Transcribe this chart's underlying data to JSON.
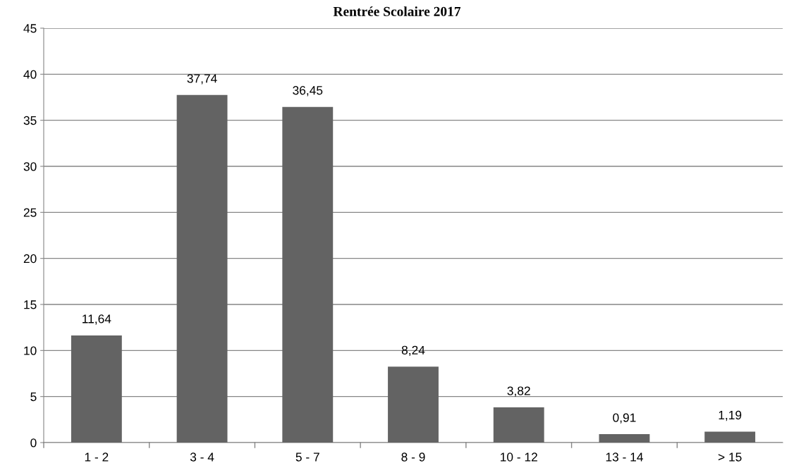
{
  "chart_data": {
    "type": "bar",
    "title": "Rentrée Scolaire 2017",
    "categories": [
      "1 - 2",
      "3 - 4",
      "5 - 7",
      "8 - 9",
      "10 - 12",
      "13 - 14",
      "> 15"
    ],
    "values": [
      11.64,
      37.74,
      36.45,
      8.24,
      3.82,
      0.91,
      1.19
    ],
    "value_labels": [
      "11,64",
      "37,74",
      "36,45",
      "8,24",
      "3,82",
      "0,91",
      "1,19"
    ],
    "color": "#636363",
    "ylim": [
      0,
      45
    ],
    "yticks": [
      0,
      5,
      10,
      15,
      20,
      25,
      30,
      35,
      40,
      45
    ],
    "grid": "y"
  }
}
